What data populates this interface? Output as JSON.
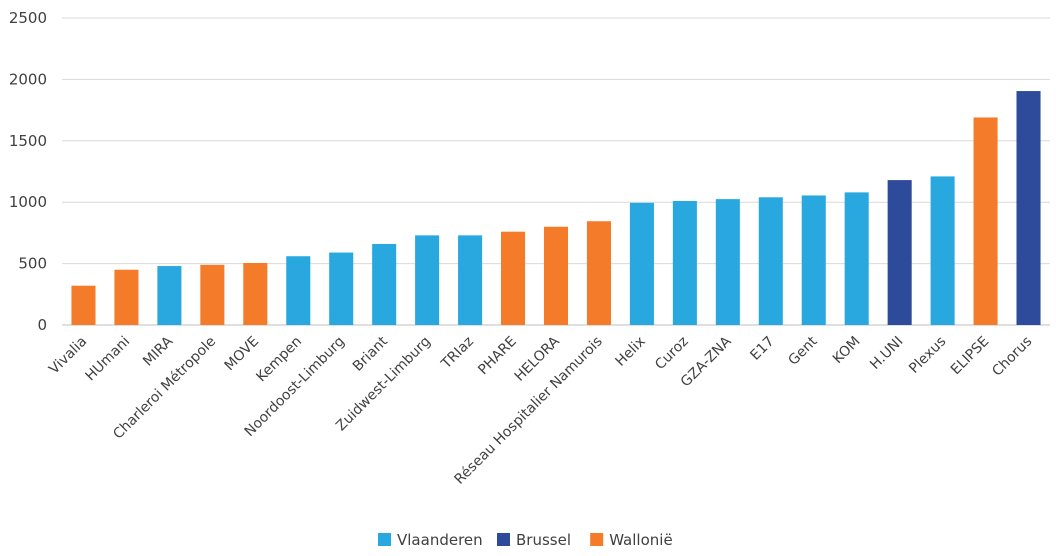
{
  "chart_data": {
    "type": "bar",
    "title": "",
    "xlabel": "",
    "ylabel": "",
    "ylim": [
      0,
      2500
    ],
    "yticks": [
      0,
      500,
      1000,
      1500,
      2000,
      2500
    ],
    "grid": true,
    "legend_position": "bottom",
    "colors": {
      "Vlaanderen": "#29a8e0",
      "Brussel": "#2e4a9a",
      "Wallonië": "#f47b2a"
    },
    "legend": [
      "Vlaanderen",
      "Brussel",
      "Wallonië"
    ],
    "categories": [
      "Vivalia",
      "HUmani",
      "MIRA",
      "Charleroi Métropole",
      "MOVE",
      "Kempen",
      "Noordoost-Limburg",
      "Briant",
      "Zuidwest-Limburg",
      "TRIaz",
      "PHARE",
      "HELORA",
      "Réseau Hospitalier Namurois",
      "Helix",
      "Curoz",
      "GZA-ZNA",
      "E17",
      "Gent",
      "KOM",
      "H.UNI",
      "Plexus",
      "ELIPSE",
      "Chorus"
    ],
    "values": [
      320,
      450,
      480,
      490,
      505,
      560,
      590,
      660,
      730,
      730,
      760,
      800,
      845,
      995,
      1010,
      1025,
      1040,
      1055,
      1080,
      1180,
      1210,
      1690,
      1905
    ],
    "regions": [
      "Wallonië",
      "Wallonië",
      "Vlaanderen",
      "Wallonië",
      "Wallonië",
      "Vlaanderen",
      "Vlaanderen",
      "Vlaanderen",
      "Vlaanderen",
      "Vlaanderen",
      "Wallonië",
      "Wallonië",
      "Wallonië",
      "Vlaanderen",
      "Vlaanderen",
      "Vlaanderen",
      "Vlaanderen",
      "Vlaanderen",
      "Vlaanderen",
      "Brussel",
      "Vlaanderen",
      "Wallonië",
      "Brussel"
    ]
  }
}
